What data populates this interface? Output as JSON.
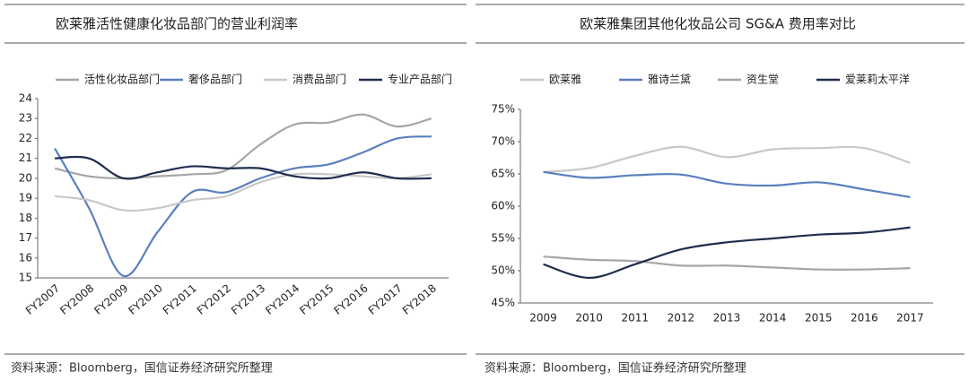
{
  "chart_data": [
    {
      "type": "line",
      "title": "欧莱雅活性健康化妆品部门的营业利润率",
      "categories": [
        "FY2007",
        "FY2008",
        "FY2009",
        "FY2010",
        "FY2011",
        "FY2012",
        "FY2013",
        "FY2014",
        "FY2015",
        "FY2016",
        "FY2017",
        "FY2018"
      ],
      "series": [
        {
          "name": "活性化妆品部门",
          "color": "#a6a6a6",
          "values": [
            20.5,
            20.1,
            20.0,
            20.1,
            20.2,
            20.4,
            21.7,
            22.7,
            22.8,
            23.2,
            22.6,
            23.0
          ]
        },
        {
          "name": "奢侈品部门",
          "color": "#5b7fbf",
          "values": [
            21.5,
            18.5,
            15.1,
            17.3,
            19.3,
            19.3,
            20.0,
            20.5,
            20.7,
            21.3,
            22.0,
            22.1
          ]
        },
        {
          "name": "消费品部门",
          "color": "#c8c8c8",
          "values": [
            19.1,
            18.9,
            18.4,
            18.5,
            18.9,
            19.1,
            19.8,
            20.2,
            20.2,
            20.1,
            20.0,
            20.2
          ]
        },
        {
          "name": "专业产品部门",
          "color": "#1f2d4e",
          "values": [
            21.0,
            21.0,
            20.0,
            20.3,
            20.6,
            20.5,
            20.5,
            20.1,
            20.0,
            20.3,
            20.0,
            20.0
          ]
        }
      ],
      "ylim": [
        15,
        24
      ],
      "yticks": [
        15,
        16,
        17,
        18,
        19,
        20,
        21,
        22,
        23,
        24
      ],
      "source": "资料来源：Bloomberg，国信证券经济研究所整理"
    },
    {
      "type": "line",
      "title": "欧莱雅集团其他化妆品公司 SG&A 费用率对比",
      "categories": [
        "2009",
        "2010",
        "2011",
        "2012",
        "2013",
        "2014",
        "2015",
        "2016",
        "2017"
      ],
      "series": [
        {
          "name": "欧莱雅",
          "color": "#c8c8c8",
          "values": [
            65.3,
            65.9,
            67.8,
            69.2,
            67.6,
            68.8,
            69.0,
            69.0,
            66.7
          ]
        },
        {
          "name": "雅诗兰黛",
          "color": "#5b7fbf",
          "values": [
            65.3,
            64.4,
            64.8,
            64.9,
            63.5,
            63.2,
            63.7,
            62.6,
            61.4
          ]
        },
        {
          "name": "资生堂",
          "color": "#a6a6a6",
          "values": [
            52.2,
            51.7,
            51.5,
            50.8,
            50.8,
            50.5,
            50.2,
            50.2,
            50.4
          ]
        },
        {
          "name": "爱莱莉太平洋",
          "color": "#1f2d4e",
          "values": [
            51.0,
            48.9,
            51.0,
            53.3,
            54.4,
            55.0,
            55.6,
            55.9,
            56.7
          ]
        }
      ],
      "ylim": [
        45,
        75
      ],
      "yticks": [
        {
          "value": 45,
          "label": "45%"
        },
        {
          "value": 50,
          "label": "50%"
        },
        {
          "value": 55,
          "label": "55%"
        },
        {
          "value": 60,
          "label": "60%"
        },
        {
          "value": 65,
          "label": "65%"
        },
        {
          "value": 70,
          "label": "70%"
        },
        {
          "value": 75,
          "label": "75%"
        }
      ],
      "source": "资料来源：Bloomberg，国信证券经济研究所整理"
    }
  ]
}
